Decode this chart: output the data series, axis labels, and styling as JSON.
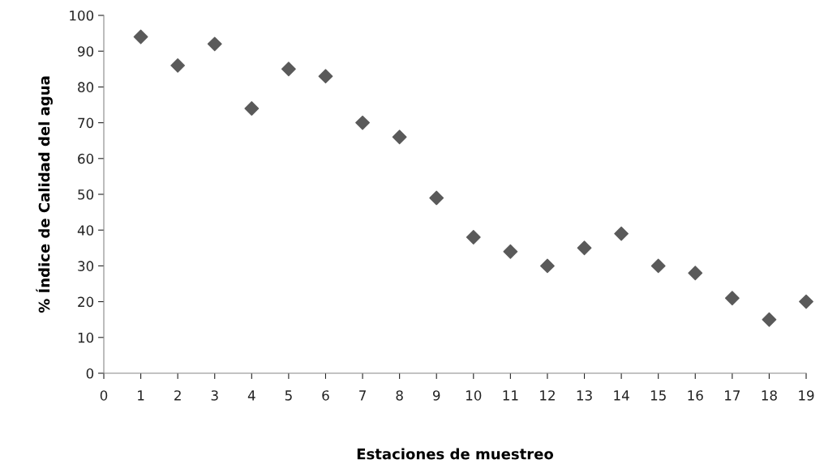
{
  "chart_data": {
    "type": "scatter",
    "xlabel": "Estaciones de muestreo",
    "ylabel": "% Índice de Calidad del agua",
    "x": [
      1,
      2,
      3,
      4,
      5,
      6,
      7,
      8,
      9,
      10,
      11,
      12,
      13,
      14,
      15,
      16,
      17,
      18,
      19
    ],
    "series": [
      {
        "color": "#5a5a5a",
        "values": [
          94,
          86,
          92,
          74,
          85,
          83,
          70,
          66,
          49,
          38,
          34,
          30,
          35,
          39,
          30,
          28,
          21,
          15,
          20
        ]
      }
    ],
    "marker": "diamond",
    "xlim": [
      0,
      19
    ],
    "ylim": [
      0,
      100
    ],
    "xticks": [
      0,
      1,
      2,
      3,
      4,
      5,
      6,
      7,
      8,
      9,
      10,
      11,
      12,
      13,
      14,
      15,
      16,
      17,
      18,
      19
    ],
    "yticks": [
      0,
      10,
      20,
      30,
      40,
      50,
      60,
      70,
      80,
      90,
      100
    ],
    "grid": false,
    "legend": false
  }
}
